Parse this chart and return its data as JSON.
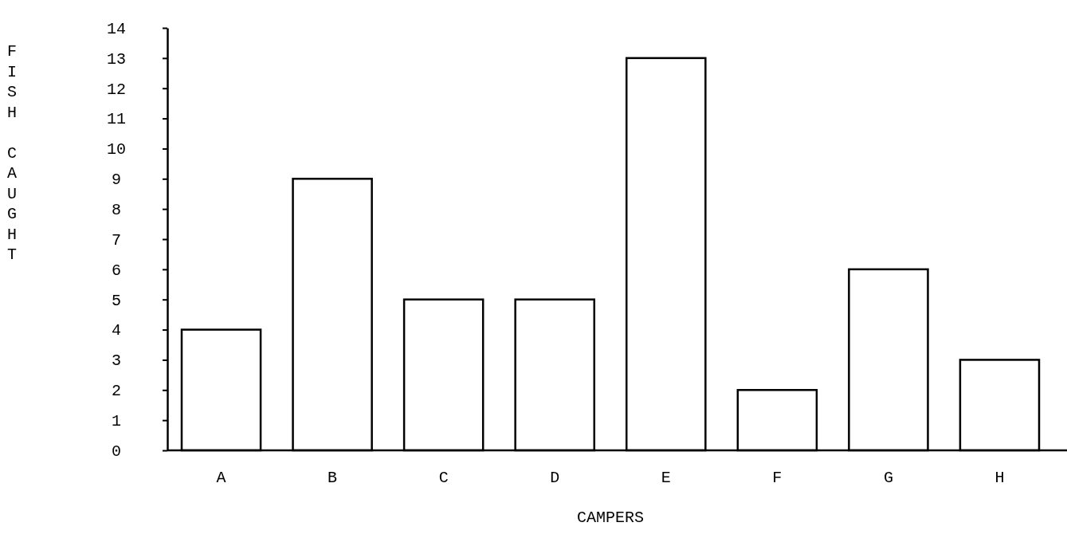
{
  "chart_data": {
    "type": "bar",
    "xlabel": "CAMPERS",
    "ylabel": "FISH CAUGHT",
    "categories": [
      "A",
      "B",
      "C",
      "D",
      "E",
      "F",
      "G",
      "H"
    ],
    "values": [
      4,
      9,
      5,
      5,
      13,
      2,
      6,
      3
    ],
    "color": "#ffffff",
    "ylim": [
      0,
      14
    ],
    "yticks": [
      0,
      1,
      2,
      3,
      4,
      5,
      6,
      7,
      8,
      9,
      10,
      11,
      12,
      13,
      14
    ],
    "grid": false
  }
}
